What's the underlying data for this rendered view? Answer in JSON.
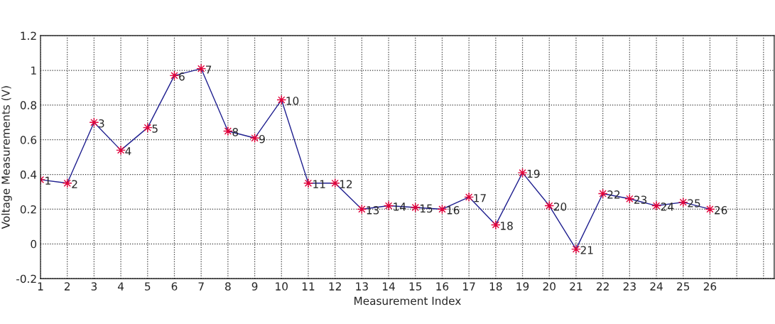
{
  "chart_data": {
    "type": "line",
    "xlabel": "Measurement Index",
    "ylabel": "Voltage Measurements (V)",
    "x": [
      1,
      2,
      3,
      4,
      5,
      6,
      7,
      8,
      9,
      10,
      11,
      12,
      13,
      14,
      15,
      16,
      17,
      18,
      19,
      20,
      21,
      22,
      23,
      24,
      25,
      26
    ],
    "series": [
      {
        "color": "#1f1f8f",
        "values": [
          0.37,
          0.35,
          0.7,
          0.54,
          0.67,
          0.97,
          1.01,
          0.65,
          0.61,
          0.83,
          0.35,
          0.35,
          0.2,
          0.22,
          0.21,
          0.2,
          0.27,
          0.11,
          0.41,
          0.22,
          -0.03,
          0.29,
          0.26,
          0.22,
          0.24,
          0.2
        ]
      }
    ],
    "annotations": [
      {
        "text": "1",
        "x": 1,
        "y": 0.37
      },
      {
        "text": "2",
        "x": 2,
        "y": 0.35
      },
      {
        "text": "3",
        "x": 3,
        "y": 0.7
      },
      {
        "text": "4",
        "x": 4,
        "y": 0.54
      },
      {
        "text": "5",
        "x": 5,
        "y": 0.67
      },
      {
        "text": "6",
        "x": 6,
        "y": 0.97
      },
      {
        "text": "7",
        "x": 7,
        "y": 1.01
      },
      {
        "text": "8",
        "x": 8,
        "y": 0.65
      },
      {
        "text": "9",
        "x": 9,
        "y": 0.61
      },
      {
        "text": "10",
        "x": 10,
        "y": 0.83
      },
      {
        "text": "11",
        "x": 11,
        "y": 0.35
      },
      {
        "text": "12",
        "x": 12,
        "y": 0.35
      },
      {
        "text": "13",
        "x": 13,
        "y": 0.2
      },
      {
        "text": "14",
        "x": 14,
        "y": 0.22
      },
      {
        "text": "15",
        "x": 15,
        "y": 0.21
      },
      {
        "text": "16",
        "x": 16,
        "y": 0.2
      },
      {
        "text": "17",
        "x": 17,
        "y": 0.27
      },
      {
        "text": "18",
        "x": 18,
        "y": 0.11
      },
      {
        "text": "19",
        "x": 19,
        "y": 0.41
      },
      {
        "text": "20",
        "x": 20,
        "y": 0.22
      },
      {
        "text": "21",
        "x": 21,
        "y": -0.03
      },
      {
        "text": "22",
        "x": 22,
        "y": 0.29
      },
      {
        "text": "23",
        "x": 23,
        "y": 0.26
      },
      {
        "text": "24",
        "x": 24,
        "y": 0.22
      },
      {
        "text": "25",
        "x": 25,
        "y": 0.24
      },
      {
        "text": "26",
        "x": 26,
        "y": 0.2
      }
    ],
    "xlim": [
      1,
      28.4
    ],
    "xticks": [
      1,
      2,
      3,
      4,
      5,
      6,
      7,
      8,
      9,
      10,
      11,
      12,
      13,
      14,
      15,
      16,
      17,
      18,
      19,
      20,
      21,
      22,
      23,
      24,
      25,
      26,
      {
        "value": 27,
        "label": null
      },
      {
        "value": 28,
        "label": null
      }
    ],
    "ylim": [
      -0.2,
      1.2
    ],
    "yticks": [
      -0.2,
      0,
      0.2,
      0.4,
      0.6,
      0.8,
      1,
      1.2
    ],
    "grid": true,
    "marker": "star",
    "line_style": "solid",
    "legend": false
  }
}
